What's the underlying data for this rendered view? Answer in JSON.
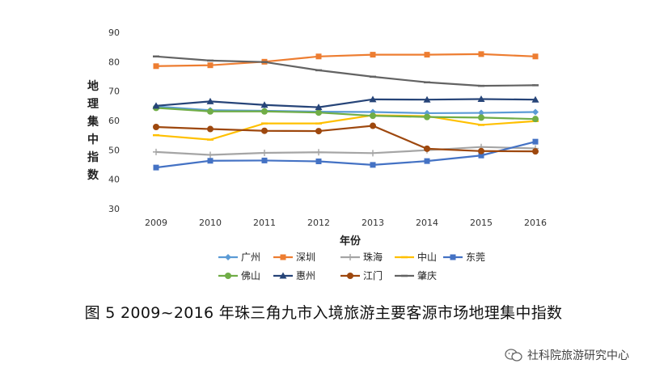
{
  "chart_data": {
    "type": "line",
    "title": "",
    "xlabel": "年份",
    "ylabel": "地理集中指数",
    "ylim": [
      30,
      90
    ],
    "yticks": [
      30,
      40,
      50,
      60,
      70,
      80,
      90
    ],
    "x": [
      "2009",
      "2010",
      "2011",
      "2012",
      "2013",
      "2014",
      "2015",
      "2016"
    ],
    "grid": false,
    "legend_position": "bottom",
    "series": [
      {
        "name": "广州",
        "color": "#5b9bd5",
        "marker": "diamond",
        "values": [
          64.8,
          63.5,
          63.3,
          63.0,
          62.9,
          62.5,
          62.6,
          62.9
        ]
      },
      {
        "name": "深圳",
        "color": "#ed7d31",
        "marker": "square",
        "values": [
          78.5,
          78.8,
          80.0,
          81.8,
          82.4,
          82.4,
          82.6,
          81.8
        ]
      },
      {
        "name": "珠海",
        "color": "#a5a5a5",
        "marker": "plus",
        "values": [
          49.3,
          48.3,
          49.0,
          49.2,
          48.9,
          49.9,
          51.0,
          50.5
        ]
      },
      {
        "name": "中山",
        "color": "#ffc000",
        "marker": "dash",
        "values": [
          55.0,
          53.5,
          59.0,
          59.0,
          61.8,
          61.5,
          58.5,
          59.8
        ]
      },
      {
        "name": "东莞",
        "color": "#4472c4",
        "marker": "square",
        "values": [
          44.0,
          46.3,
          46.4,
          46.1,
          44.9,
          46.2,
          48.1,
          52.8
        ]
      },
      {
        "name": "佛山",
        "color": "#70ad47",
        "marker": "circle",
        "values": [
          64.3,
          63.1,
          63.1,
          62.7,
          61.6,
          61.2,
          61.0,
          60.5
        ]
      },
      {
        "name": "惠州",
        "color": "#264478",
        "marker": "triangle",
        "values": [
          65.0,
          66.5,
          65.3,
          64.5,
          67.2,
          67.1,
          67.3,
          67.1
        ]
      },
      {
        "name": "江门",
        "color": "#9e480e",
        "marker": "circle",
        "values": [
          57.8,
          57.1,
          56.5,
          56.4,
          58.2,
          50.4,
          49.6,
          49.5
        ]
      },
      {
        "name": "肇庆",
        "color": "#636363",
        "marker": "dash",
        "values": [
          81.8,
          80.4,
          79.9,
          77.1,
          74.9,
          73.0,
          71.8,
          72.0
        ]
      }
    ]
  },
  "caption": "图 5    2009~2016 年珠三角九市入境旅游主要客源市场地理集中指数",
  "watermark": "社科院旅游研究中心"
}
